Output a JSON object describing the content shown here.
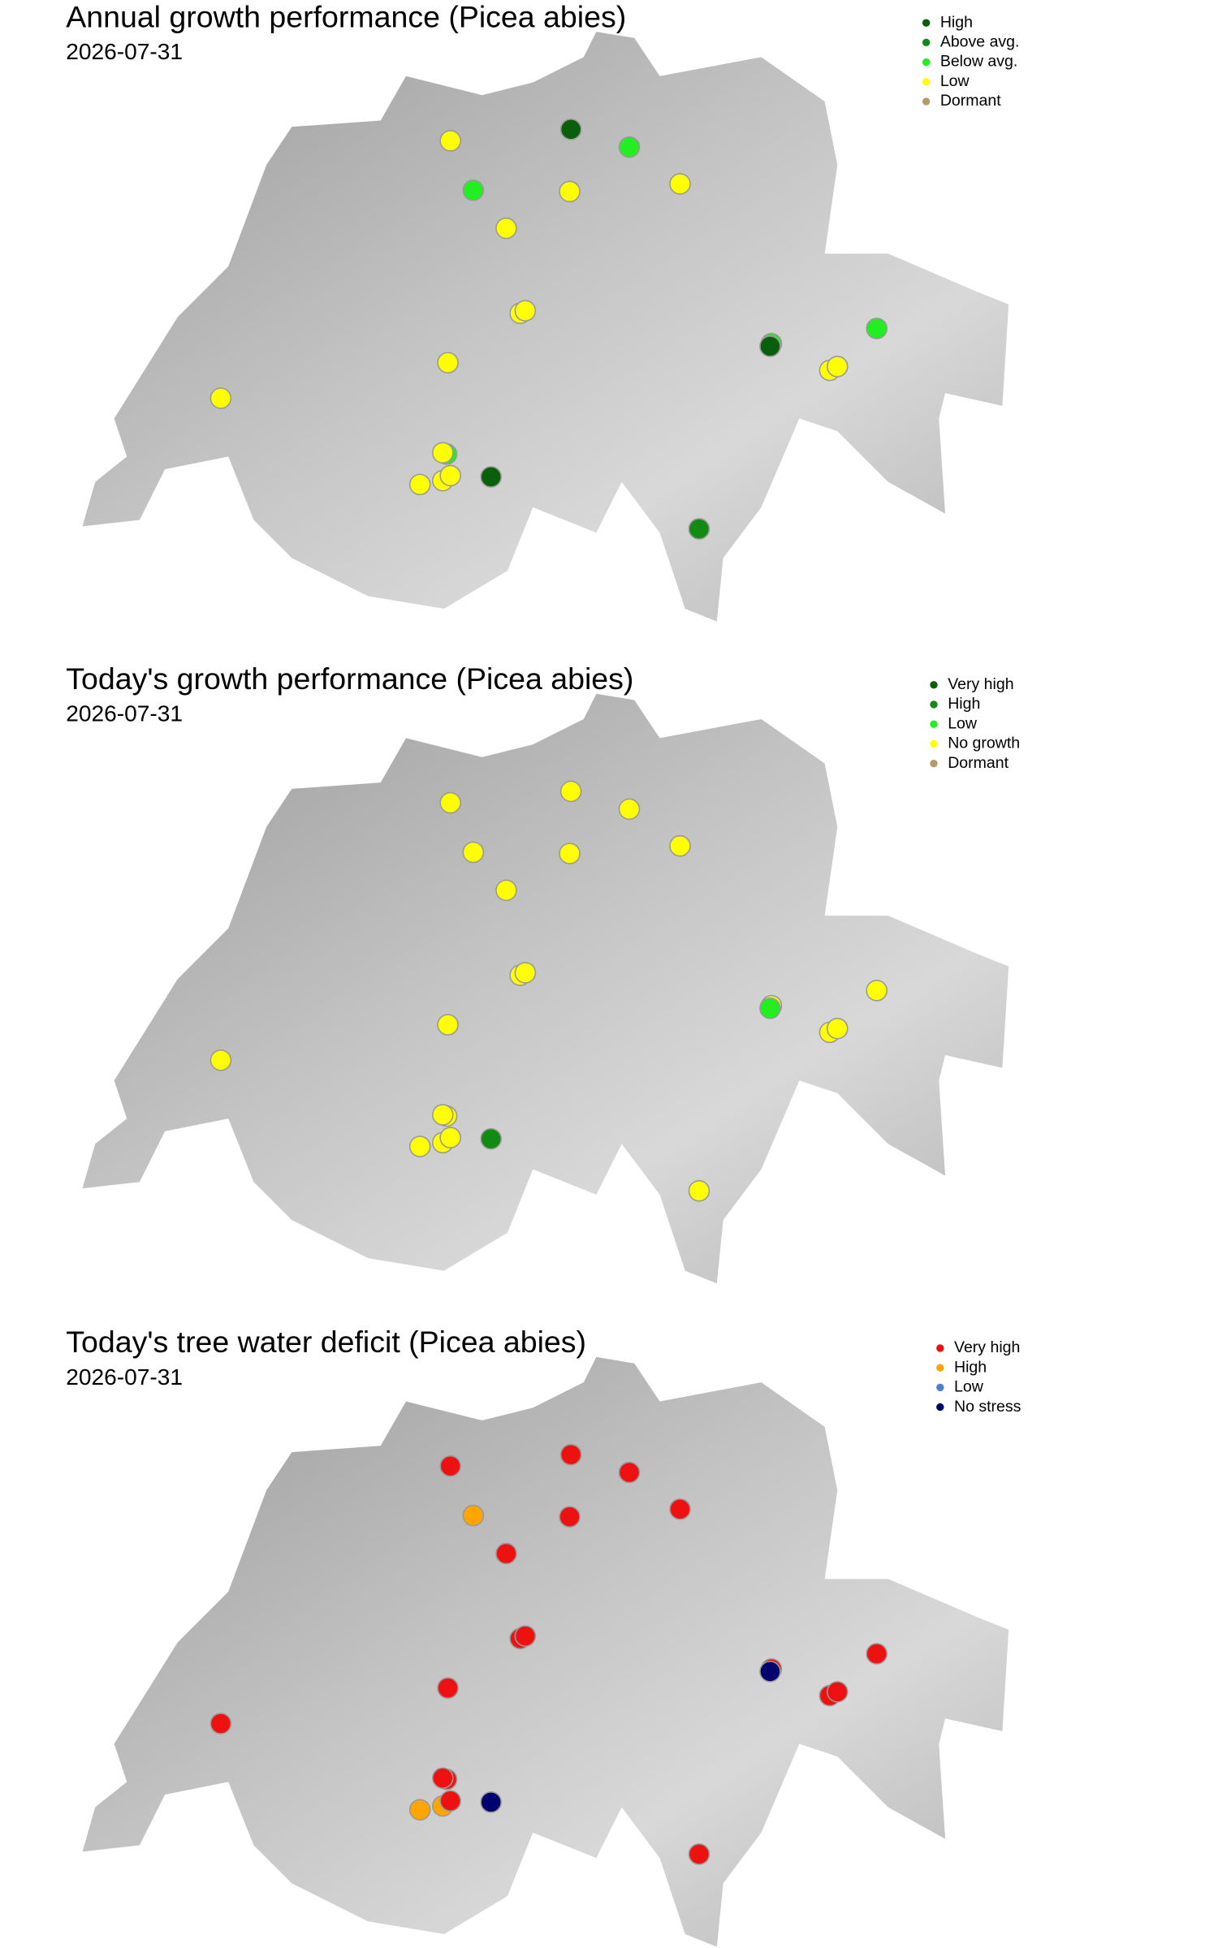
{
  "maps": [
    {
      "title": "Annual growth performance (Picea abies)",
      "date": "2026-07-31",
      "legend": [
        {
          "label": "High",
          "color": "#0b5e0b"
        },
        {
          "label": "Above avg.",
          "color": "#138a13"
        },
        {
          "label": "Below avg.",
          "color": "#22ee22"
        },
        {
          "label": "Low",
          "color": "#ffff00"
        },
        {
          "label": "Dormant",
          "color": "#b39b6b"
        }
      ],
      "sites": [
        "Low",
        "High",
        "Below avg.",
        "Below avg.",
        "Low",
        "Low",
        "Low",
        "Low",
        "Low",
        "Below avg.",
        "High",
        "Below avg.",
        "Low",
        "Low",
        "Low",
        "Low",
        "Below avg.",
        "Low",
        "High",
        "Low",
        "Low",
        "Low",
        "Above avg."
      ]
    },
    {
      "title": "Today's growth performance (Picea abies)",
      "date": "2026-07-31",
      "legend": [
        {
          "label": "Very high",
          "color": "#0b5e0b"
        },
        {
          "label": "High",
          "color": "#138a13"
        },
        {
          "label": "Low",
          "color": "#22ee22"
        },
        {
          "label": "No growth",
          "color": "#ffff00"
        },
        {
          "label": "Dormant",
          "color": "#b39b6b"
        }
      ],
      "sites": [
        "No growth",
        "No growth",
        "No growth",
        "No growth",
        "No growth",
        "No growth",
        "No growth",
        "No growth",
        "No growth",
        "No growth",
        "Low",
        "No growth",
        "No growth",
        "No growth",
        "No growth",
        "No growth",
        "No growth",
        "No growth",
        "High",
        "No growth",
        "No growth",
        "No growth",
        "No growth"
      ]
    },
    {
      "title": "Today's tree water deficit (Picea abies)",
      "date": "2026-07-31",
      "legend": [
        {
          "label": "Very high",
          "color": "#ee1111"
        },
        {
          "label": "High",
          "color": "#ffa500"
        },
        {
          "label": "Low",
          "color": "#4a7fd4"
        },
        {
          "label": "No stress",
          "color": "#00006e"
        }
      ],
      "sites": [
        "Very high",
        "Very high",
        "Very high",
        "High",
        "Very high",
        "Very high",
        "Very high",
        "Very high",
        "Very high",
        "Very high",
        "No stress",
        "Very high",
        "Very high",
        "Very high",
        "Very high",
        "Very high",
        "Very high",
        "Very high",
        "No stress",
        "High",
        "High",
        "Very high",
        "Very high"
      ]
    }
  ]
}
